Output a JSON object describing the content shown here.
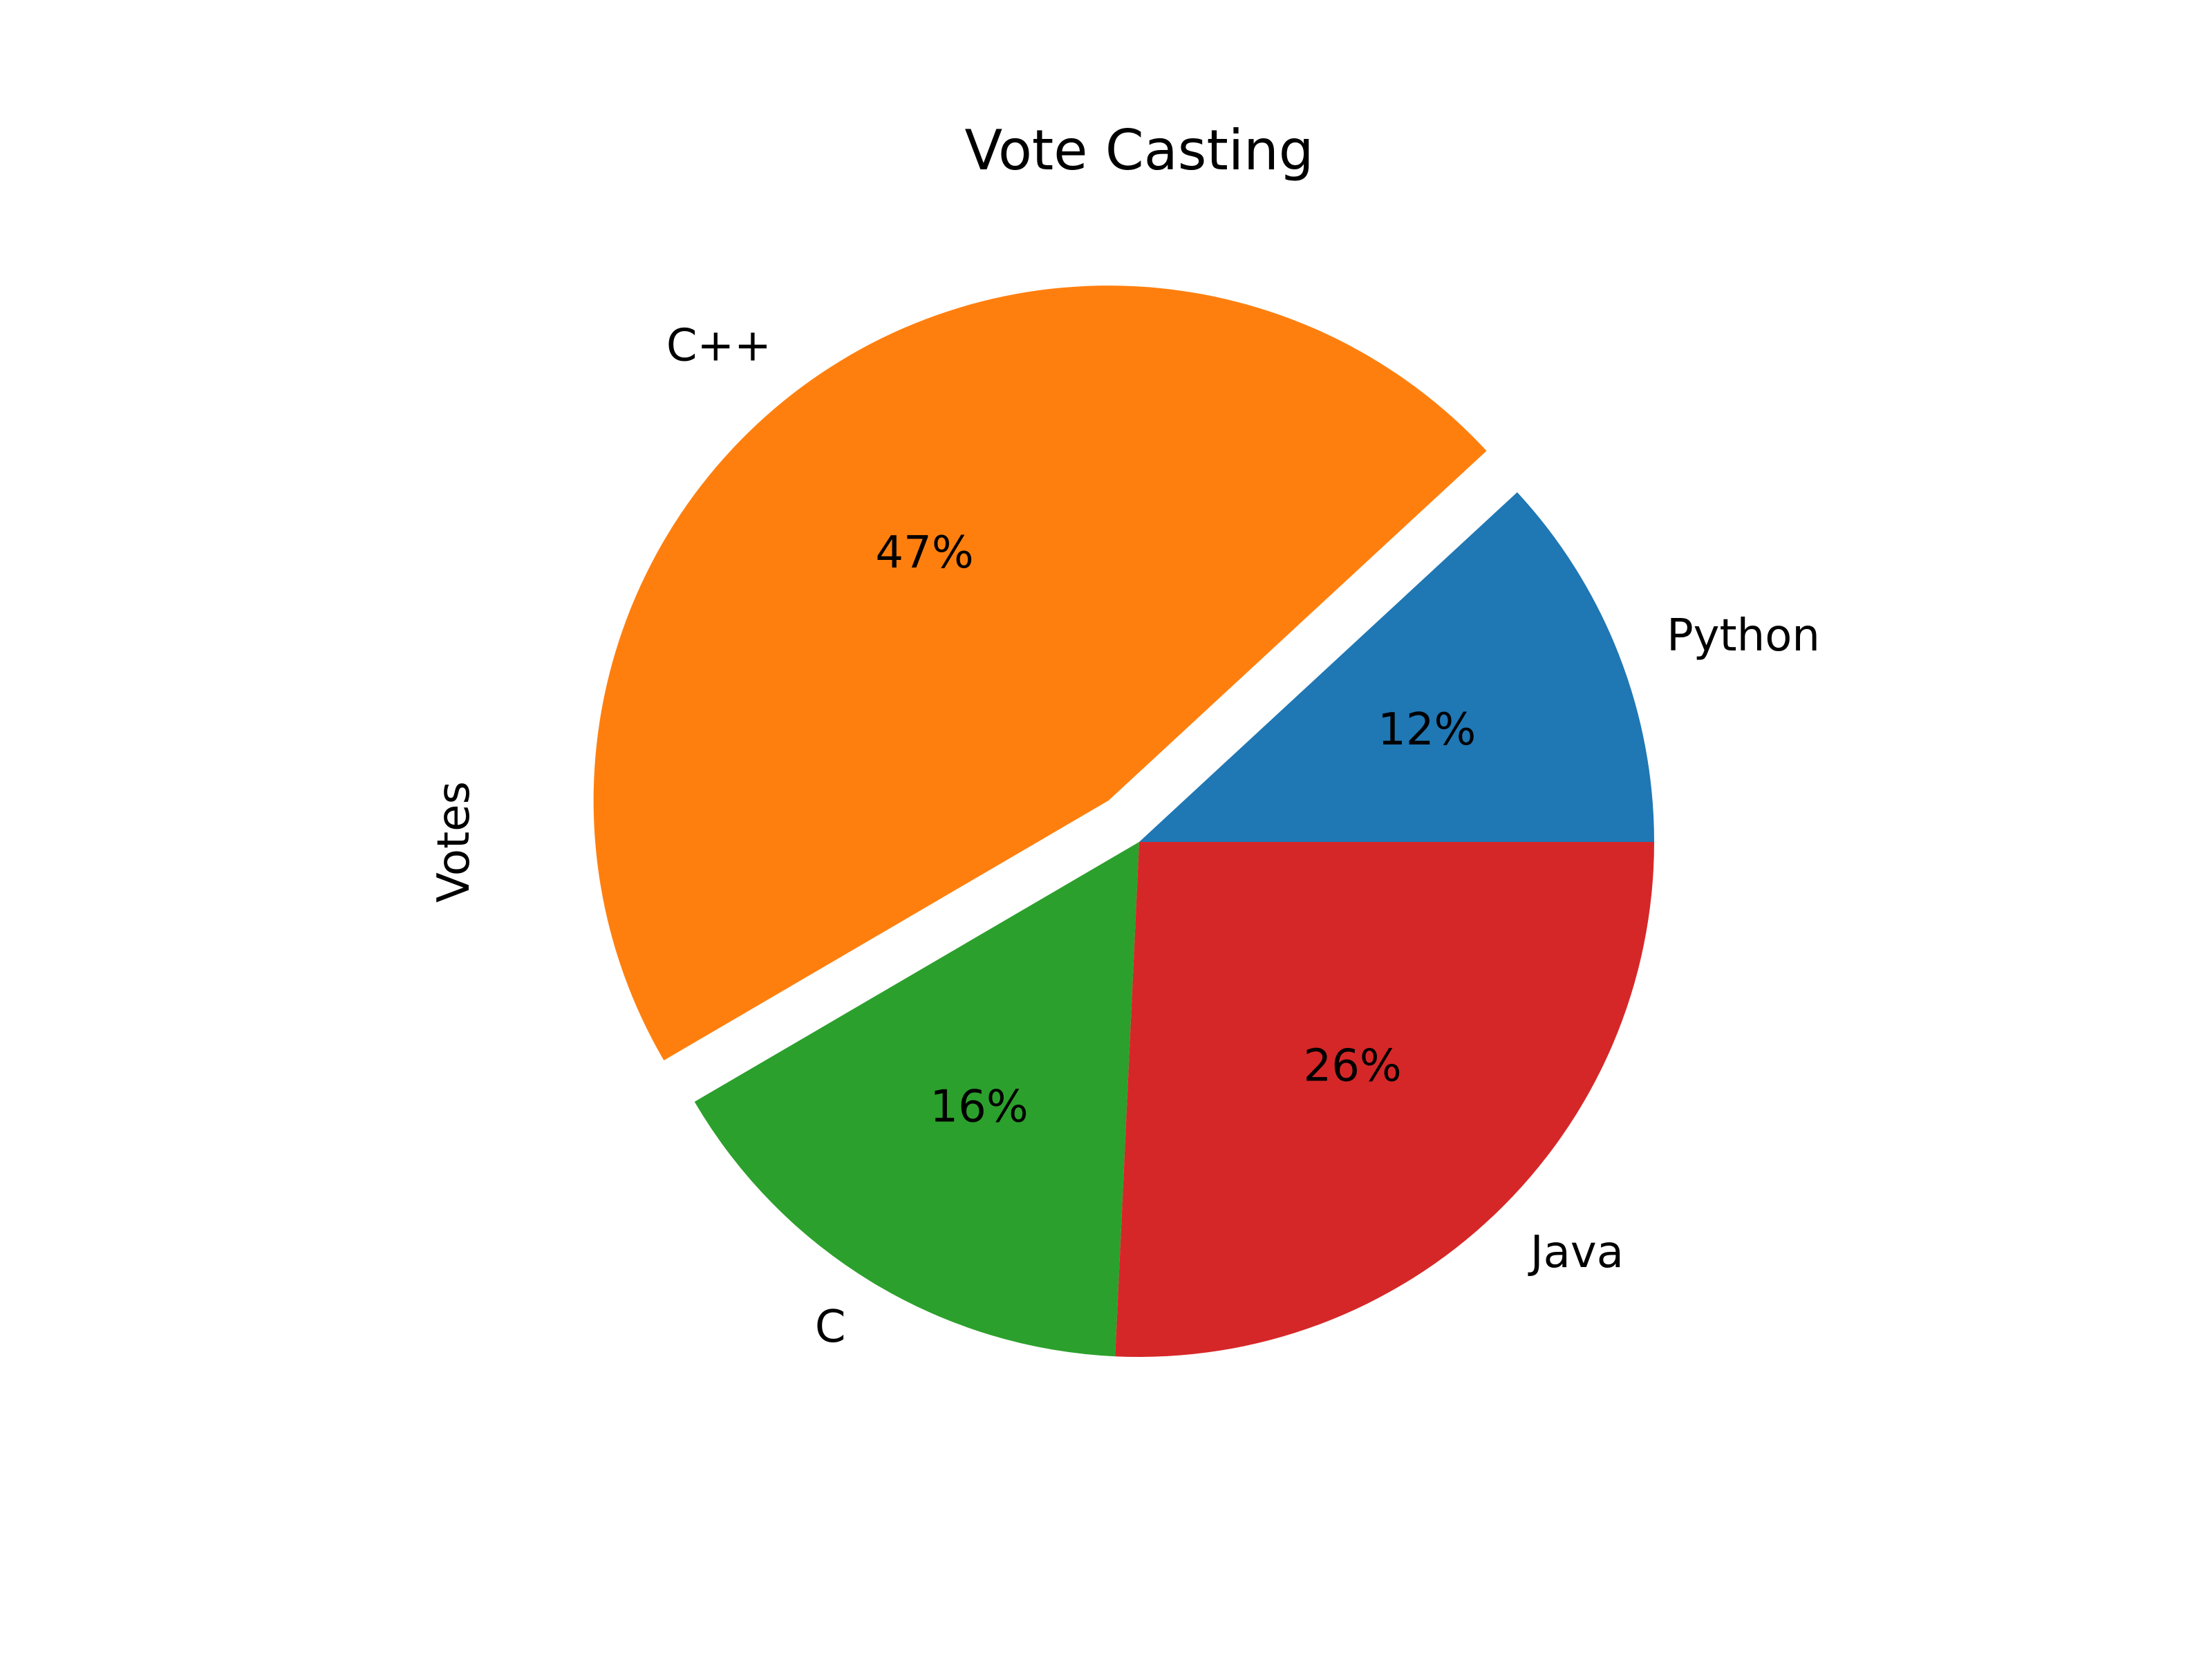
{
  "chart_data": {
    "type": "pie",
    "title": "Vote Casting",
    "ylabel": "Votes",
    "start_angle_deg": 0,
    "direction": "counterclockwise",
    "slices": [
      {
        "label": "Python",
        "value": 12,
        "pct_label": "12%",
        "color": "#1f77b4",
        "exploded": false
      },
      {
        "label": "C++",
        "value": 47,
        "pct_label": "47%",
        "color": "#ff7f0e",
        "exploded": true
      },
      {
        "label": "C",
        "value": 16,
        "pct_label": "16%",
        "color": "#2ca02c",
        "exploded": false
      },
      {
        "label": "Java",
        "value": 26,
        "pct_label": "26%",
        "color": "#d62728",
        "exploded": false
      }
    ]
  }
}
